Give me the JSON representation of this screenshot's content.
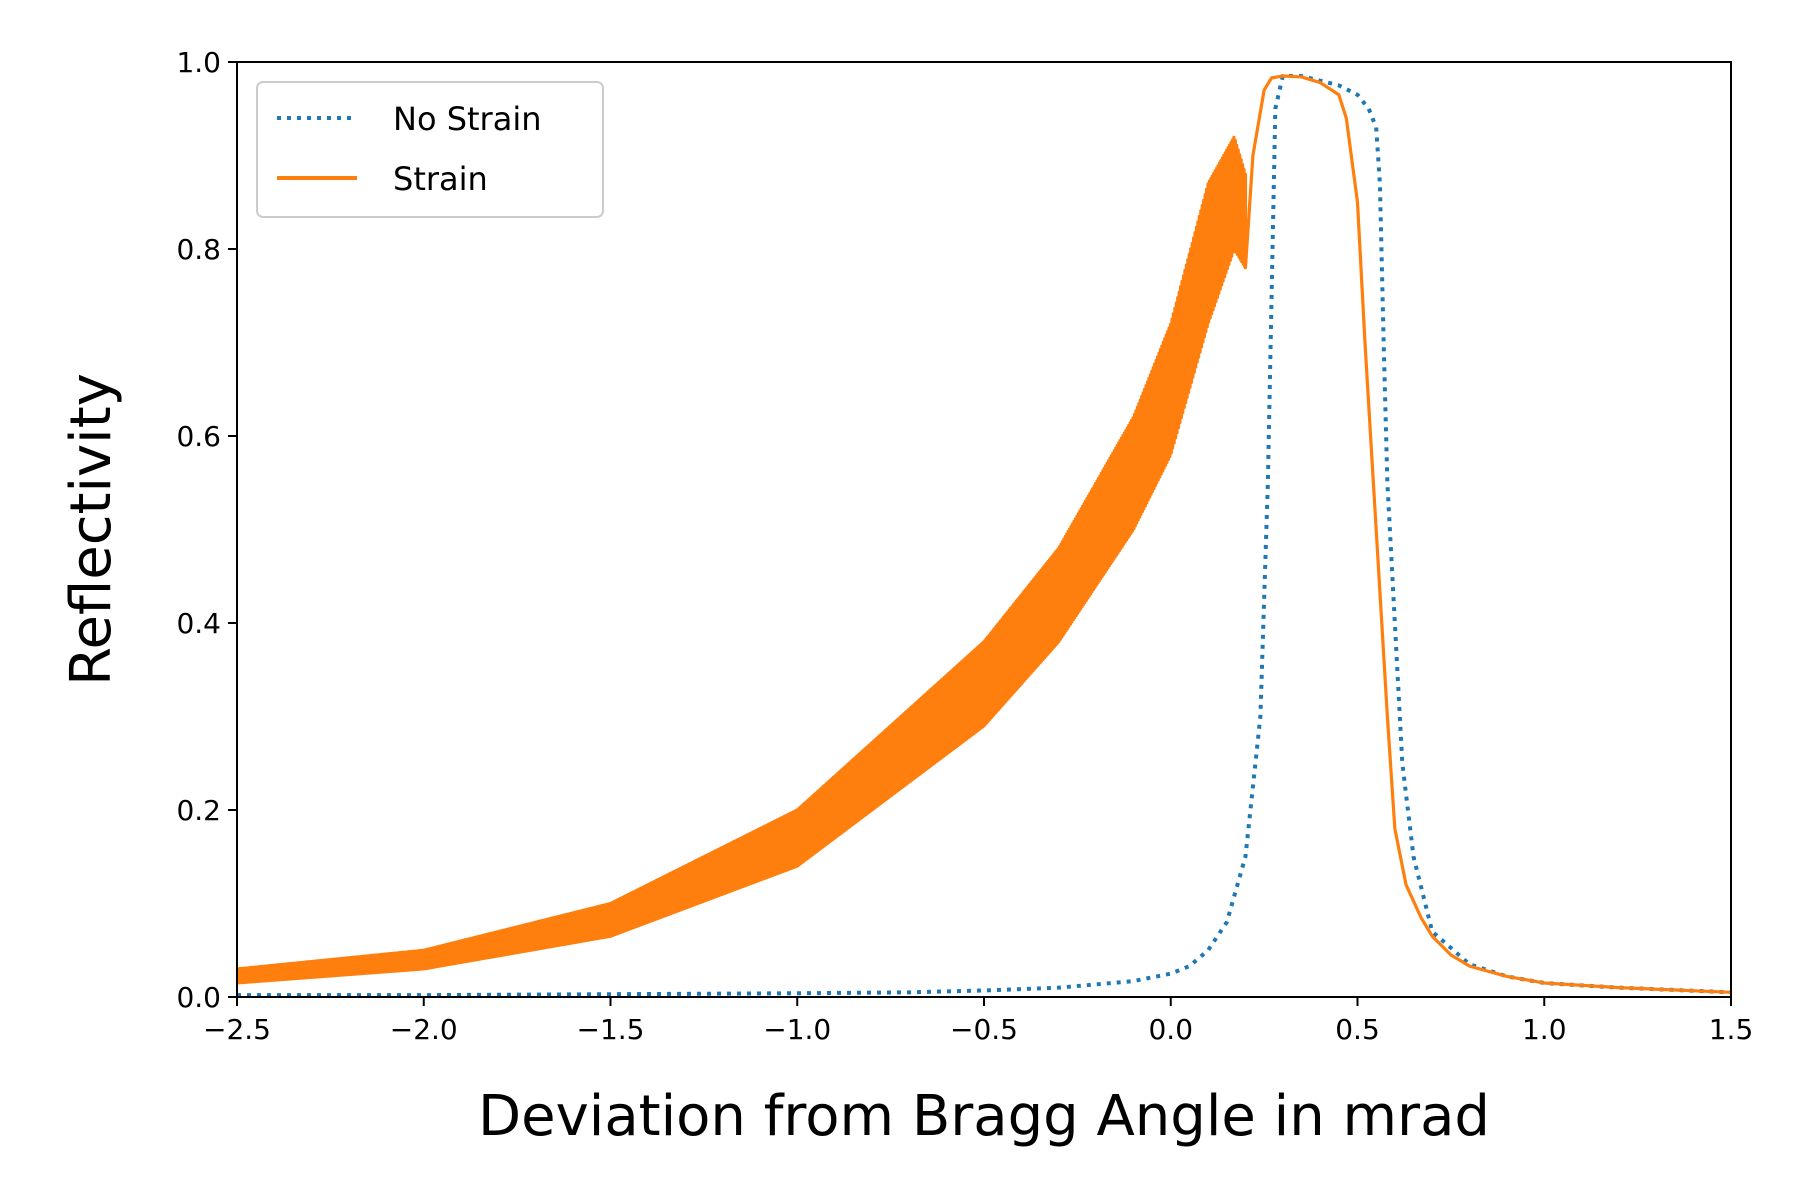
{
  "chart_data": {
    "type": "line",
    "title": "",
    "xlabel": "Deviation from Bragg Angle in mrad",
    "ylabel": "Reflectivity",
    "xlim": [
      -2.5,
      1.5
    ],
    "ylim": [
      0.0,
      1.0
    ],
    "xticks": [
      "−2.5",
      "−2.0",
      "−1.5",
      "−1.0",
      "−0.5",
      "0.0",
      "0.5",
      "1.0",
      "1.5"
    ],
    "xtick_values": [
      -2.5,
      -2.0,
      -1.5,
      -1.0,
      -0.5,
      0.0,
      0.5,
      1.0,
      1.5
    ],
    "yticks": [
      "0.0",
      "0.2",
      "0.4",
      "0.6",
      "0.8",
      "1.0"
    ],
    "ytick_values": [
      0.0,
      0.2,
      0.4,
      0.6,
      0.8,
      1.0
    ],
    "grid": false,
    "legend_position": "upper-left",
    "series": [
      {
        "name": "No Strain",
        "style": "dotted",
        "color": "#1f77b4",
        "x": [
          -2.5,
          -2.0,
          -1.5,
          -1.0,
          -0.7,
          -0.5,
          -0.3,
          -0.1,
          0.0,
          0.05,
          0.1,
          0.15,
          0.2,
          0.24,
          0.26,
          0.27,
          0.28,
          0.3,
          0.35,
          0.4,
          0.45,
          0.5,
          0.53,
          0.55,
          0.56,
          0.57,
          0.58,
          0.6,
          0.62,
          0.65,
          0.7,
          0.8,
          0.9,
          1.0,
          1.2,
          1.5
        ],
        "y": [
          0.002,
          0.002,
          0.003,
          0.004,
          0.005,
          0.007,
          0.01,
          0.017,
          0.025,
          0.033,
          0.05,
          0.08,
          0.15,
          0.3,
          0.55,
          0.75,
          0.95,
          0.985,
          0.985,
          0.98,
          0.975,
          0.965,
          0.95,
          0.93,
          0.87,
          0.7,
          0.55,
          0.4,
          0.25,
          0.15,
          0.07,
          0.035,
          0.022,
          0.015,
          0.01,
          0.005
        ]
      },
      {
        "name": "Strain",
        "style": "solid",
        "color": "#ff7f0e",
        "envelope_x": [
          -2.5,
          -2.0,
          -1.5,
          -1.0,
          -0.5,
          -0.3,
          -0.1,
          0.0,
          0.1,
          0.17,
          0.2
        ],
        "envelope_upper": [
          0.03,
          0.05,
          0.1,
          0.2,
          0.38,
          0.48,
          0.62,
          0.72,
          0.87,
          0.92,
          0.88
        ],
        "envelope_lower": [
          0.015,
          0.03,
          0.065,
          0.14,
          0.29,
          0.38,
          0.5,
          0.58,
          0.72,
          0.8,
          0.78
        ],
        "x": [
          0.2,
          0.22,
          0.25,
          0.27,
          0.3,
          0.35,
          0.4,
          0.45,
          0.47,
          0.5,
          0.52,
          0.55,
          0.58,
          0.6,
          0.63,
          0.67,
          0.7,
          0.75,
          0.8,
          0.9,
          1.0,
          1.2,
          1.5
        ],
        "y": [
          0.78,
          0.9,
          0.97,
          0.983,
          0.985,
          0.984,
          0.978,
          0.965,
          0.94,
          0.85,
          0.7,
          0.5,
          0.3,
          0.18,
          0.12,
          0.085,
          0.065,
          0.045,
          0.033,
          0.022,
          0.015,
          0.01,
          0.005
        ]
      }
    ]
  }
}
